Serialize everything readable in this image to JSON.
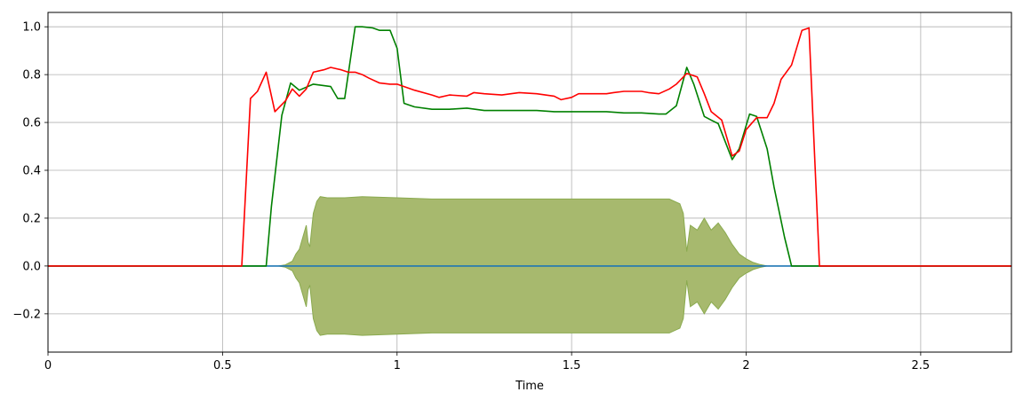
{
  "chart_data": {
    "type": "line",
    "xlabel": "Time",
    "ylabel": "",
    "xlim": [
      0,
      2.76
    ],
    "ylim": [
      -0.36,
      1.06
    ],
    "grid": true,
    "xticks": [
      {
        "value": 0,
        "label": "0"
      },
      {
        "value": 0.5,
        "label": "0.5"
      },
      {
        "value": 1,
        "label": "1"
      },
      {
        "value": 1.5,
        "label": "1.5"
      },
      {
        "value": 2,
        "label": "2"
      },
      {
        "value": 2.5,
        "label": "2.5"
      }
    ],
    "yticks": [
      {
        "value": -0.2,
        "label": "−0.2"
      },
      {
        "value": 0,
        "label": "0.0"
      },
      {
        "value": 0.2,
        "label": "0.2"
      },
      {
        "value": 0.4,
        "label": "0.4"
      },
      {
        "value": 0.6,
        "label": "0.6"
      },
      {
        "value": 0.8,
        "label": "0.8"
      },
      {
        "value": 1.0,
        "label": "1.0"
      }
    ],
    "waveform_envelope": {
      "color": "#a7b96e",
      "edge_color": "#8aaa4f",
      "points": [
        [
          0.66,
          0.0
        ],
        [
          0.68,
          0.005
        ],
        [
          0.7,
          0.02
        ],
        [
          0.71,
          0.05
        ],
        [
          0.72,
          0.07
        ],
        [
          0.73,
          0.12
        ],
        [
          0.74,
          0.17
        ],
        [
          0.745,
          0.1
        ],
        [
          0.75,
          0.08
        ],
        [
          0.76,
          0.22
        ],
        [
          0.77,
          0.27
        ],
        [
          0.78,
          0.29
        ],
        [
          0.8,
          0.285
        ],
        [
          0.85,
          0.285
        ],
        [
          0.9,
          0.29
        ],
        [
          1.0,
          0.285
        ],
        [
          1.1,
          0.28
        ],
        [
          1.2,
          0.28
        ],
        [
          1.3,
          0.28
        ],
        [
          1.4,
          0.28
        ],
        [
          1.5,
          0.28
        ],
        [
          1.6,
          0.28
        ],
        [
          1.7,
          0.28
        ],
        [
          1.78,
          0.28
        ],
        [
          1.81,
          0.26
        ],
        [
          1.82,
          0.22
        ],
        [
          1.83,
          0.06
        ],
        [
          1.84,
          0.17
        ],
        [
          1.86,
          0.15
        ],
        [
          1.88,
          0.2
        ],
        [
          1.9,
          0.15
        ],
        [
          1.92,
          0.18
        ],
        [
          1.94,
          0.14
        ],
        [
          1.96,
          0.09
        ],
        [
          1.98,
          0.05
        ],
        [
          2.0,
          0.03
        ],
        [
          2.02,
          0.015
        ],
        [
          2.04,
          0.006
        ],
        [
          2.06,
          0.0
        ]
      ]
    },
    "series": [
      {
        "color": "#ff0000",
        "x": [
          0,
          0.555,
          0.58,
          0.6,
          0.625,
          0.65,
          0.68,
          0.7,
          0.72,
          0.74,
          0.76,
          0.79,
          0.81,
          0.84,
          0.86,
          0.88,
          0.9,
          0.92,
          0.95,
          0.98,
          1.0,
          1.05,
          1.1,
          1.12,
          1.15,
          1.2,
          1.22,
          1.25,
          1.3,
          1.35,
          1.4,
          1.45,
          1.47,
          1.5,
          1.52,
          1.55,
          1.6,
          1.62,
          1.65,
          1.7,
          1.72,
          1.75,
          1.78,
          1.8,
          1.83,
          1.86,
          1.88,
          1.9,
          1.93,
          1.96,
          1.98,
          2.0,
          2.03,
          2.06,
          2.08,
          2.1,
          2.13,
          2.16,
          2.18,
          2.21,
          2.76
        ],
        "y": [
          0,
          0,
          0.7,
          0.73,
          0.81,
          0.645,
          0.69,
          0.74,
          0.71,
          0.74,
          0.81,
          0.82,
          0.83,
          0.82,
          0.81,
          0.81,
          0.8,
          0.785,
          0.765,
          0.76,
          0.76,
          0.735,
          0.715,
          0.705,
          0.715,
          0.71,
          0.725,
          0.72,
          0.715,
          0.725,
          0.72,
          0.71,
          0.695,
          0.705,
          0.72,
          0.72,
          0.72,
          0.725,
          0.73,
          0.73,
          0.725,
          0.72,
          0.74,
          0.76,
          0.805,
          0.79,
          0.72,
          0.645,
          0.61,
          0.46,
          0.48,
          0.57,
          0.62,
          0.62,
          0.68,
          0.78,
          0.84,
          0.985,
          0.995,
          0,
          0
        ]
      },
      {
        "color": "#008000",
        "x": [
          0,
          0.625,
          0.64,
          0.67,
          0.695,
          0.72,
          0.76,
          0.81,
          0.83,
          0.85,
          0.88,
          0.9,
          0.93,
          0.95,
          0.98,
          1.0,
          1.02,
          1.05,
          1.1,
          1.15,
          1.2,
          1.25,
          1.3,
          1.35,
          1.4,
          1.45,
          1.5,
          1.55,
          1.6,
          1.65,
          1.7,
          1.75,
          1.77,
          1.8,
          1.83,
          1.85,
          1.88,
          1.9,
          1.92,
          1.96,
          1.98,
          2.01,
          2.03,
          2.06,
          2.08,
          2.11,
          2.13,
          2.76
        ],
        "y": [
          0,
          0,
          0.25,
          0.63,
          0.765,
          0.735,
          0.76,
          0.75,
          0.7,
          0.7,
          1.0,
          1.0,
          0.995,
          0.985,
          0.985,
          0.91,
          0.68,
          0.665,
          0.655,
          0.655,
          0.66,
          0.65,
          0.65,
          0.65,
          0.65,
          0.645,
          0.645,
          0.645,
          0.645,
          0.64,
          0.64,
          0.635,
          0.635,
          0.67,
          0.83,
          0.76,
          0.625,
          0.61,
          0.595,
          0.445,
          0.49,
          0.635,
          0.625,
          0.49,
          0.33,
          0.12,
          0,
          0
        ]
      },
      {
        "color": "#1f77b4",
        "x": [
          0,
          2.76
        ],
        "y": [
          0,
          0
        ]
      }
    ]
  }
}
